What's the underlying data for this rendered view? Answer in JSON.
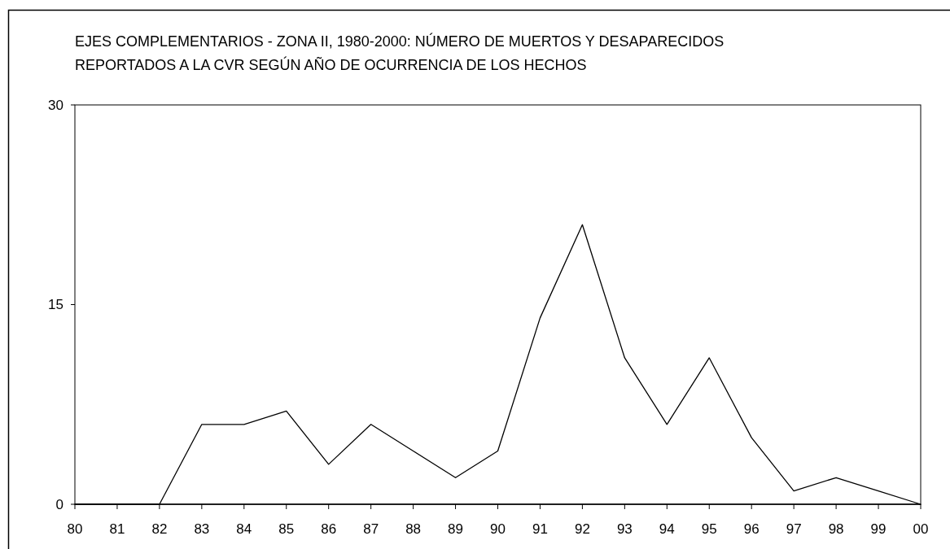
{
  "chart_data": {
    "type": "line",
    "title": "EJES COMPLEMENTARIOS - ZONA II, 1980-2000: NÚMERO DE MUERTOS Y DESAPARECIDOS\nREPORTADOS A LA CVR SEGÚN AÑO DE OCURRENCIA DE LOS HECHOS",
    "categories": [
      "80",
      "81",
      "82",
      "83",
      "84",
      "85",
      "86",
      "87",
      "88",
      "89",
      "90",
      "91",
      "92",
      "93",
      "94",
      "95",
      "96",
      "97",
      "98",
      "99",
      "00"
    ],
    "series": [
      {
        "color": "#000000",
        "values": [
          0,
          0,
          0,
          6,
          6,
          7,
          3,
          6,
          4,
          2,
          4,
          14,
          21,
          11,
          6,
          11,
          5,
          1,
          2,
          1,
          0
        ]
      }
    ],
    "ylim": [
      0,
      30
    ],
    "yticks": [
      0,
      15,
      30
    ],
    "grid": false,
    "marker": "none",
    "line_style": "solid"
  }
}
